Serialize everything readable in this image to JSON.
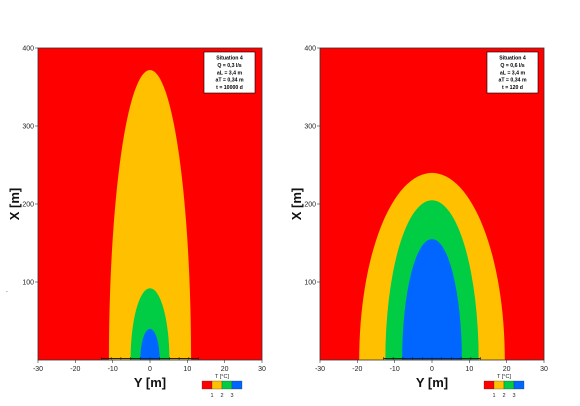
{
  "colors": {
    "red": "#ff0000",
    "orange": "#ffc000",
    "green": "#00cc44",
    "blue": "#0066ff"
  },
  "stray_mark": ".",
  "chart_data": [
    {
      "type": "contour",
      "xlabel": "Y [m]",
      "ylabel": "X [m]",
      "xlim": [
        -30,
        30
      ],
      "ylim": [
        0,
        400
      ],
      "xticks": [
        "-30",
        "-20",
        "-10",
        "0",
        "10",
        "20",
        "30"
      ],
      "yticks": [
        "100",
        "200",
        "300",
        "400"
      ],
      "info_box": [
        "Situation 4",
        "Q = 0,3 l/s",
        "aL = 3,4 m",
        "aT = 0,34 m",
        "t = 10000 d"
      ],
      "legend": {
        "title": "T [°C]",
        "labels": [
          "1",
          "2",
          "3"
        ]
      },
      "source_line": {
        "y": 2,
        "x_from": -13,
        "x_to": 13
      },
      "regions": [
        {
          "level": "2",
          "color": "orange",
          "y_half_width": 11,
          "x_top": 372
        },
        {
          "level": "3",
          "color": "green",
          "y_half_width": 5.2,
          "x_top": 92
        },
        {
          "level": "4",
          "color": "blue",
          "y_half_width": 2.6,
          "x_top": 40
        }
      ]
    },
    {
      "type": "contour",
      "xlabel": "Y [m]",
      "ylabel": "X [m]",
      "xlim": [
        -30,
        30
      ],
      "ylim": [
        0,
        400
      ],
      "xticks": [
        "-30",
        "-20",
        "-10",
        "0",
        "10",
        "20",
        "30"
      ],
      "yticks": [
        "100",
        "200",
        "300",
        "400"
      ],
      "info_box": [
        "Situation 4",
        "Q = 0,6 l/s",
        "aL = 3,4 m",
        "aT = 0,34 m",
        "t = 120 d"
      ],
      "legend": {
        "title": "T [°C]",
        "labels": [
          "1",
          "2",
          "3"
        ]
      },
      "source_line": {
        "y": 2,
        "x_from": -13,
        "x_to": 13
      },
      "regions": [
        {
          "level": "2",
          "color": "orange",
          "y_half_width": 19.5,
          "x_top": 240
        },
        {
          "level": "3",
          "color": "green",
          "y_half_width": 12.5,
          "x_top": 205
        },
        {
          "level": "4",
          "color": "blue",
          "y_half_width": 8,
          "x_top": 155
        }
      ]
    }
  ]
}
